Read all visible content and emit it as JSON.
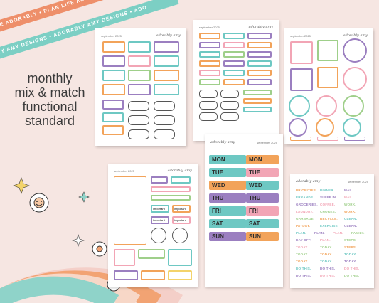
{
  "banners": {
    "top": "PLAN LIFE ADORABLY • PLAN LIFE ADORABLY • PLAN",
    "bottom": "ADORABLY AMY DESIGNS • ADORABLY AMY DESIGNS • ADO"
  },
  "headline": [
    "monthly",
    "mix & match",
    "functional",
    "standard"
  ],
  "sheets": {
    "logo": "adorably amy",
    "month": "september 2025",
    "days": [
      "MON",
      "TUE",
      "WED",
      "THU",
      "FRI",
      "SAT",
      "SUN"
    ],
    "important_label": "important",
    "words": [
      [
        "PRIORITIES.",
        "DINNER.",
        "MAIL."
      ],
      [
        "ERRANDS.",
        "SLEEP IN.",
        "MAIL."
      ],
      [
        "GROCERIES.",
        "COFFEE.",
        "WORK."
      ],
      [
        "LAUNDRY.",
        "CHORES.",
        "WORK."
      ],
      [
        "GARBAGE.",
        "RECYCLE.",
        "CLEAN."
      ],
      [
        "PAYDAY.",
        "EXERCISE.",
        "CLEAN."
      ],
      [
        "PLAN.",
        "PLAN.",
        "PLAN.",
        "FAMILY."
      ],
      [
        "DAY OFF.",
        "PLAN.",
        "STEPS."
      ],
      [
        "TODAY.",
        "TODAY.",
        "STEPS."
      ],
      [
        "TODAY.",
        "TODAY.",
        "TODAY."
      ],
      [
        "TODAY.",
        "TODAY.",
        "TODAY."
      ],
      [
        "DO THIS.",
        "DO THIS.",
        "DO THIS."
      ],
      [
        "DO THIS.",
        "DO THIS.",
        "DO THIS."
      ]
    ]
  },
  "colors": {
    "orange": "#f2a35a",
    "teal": "#6ec8c3",
    "purple": "#9b7fc0",
    "pink": "#f2a5b5",
    "green": "#9fcf8a",
    "yellow": "#f3d36b"
  }
}
